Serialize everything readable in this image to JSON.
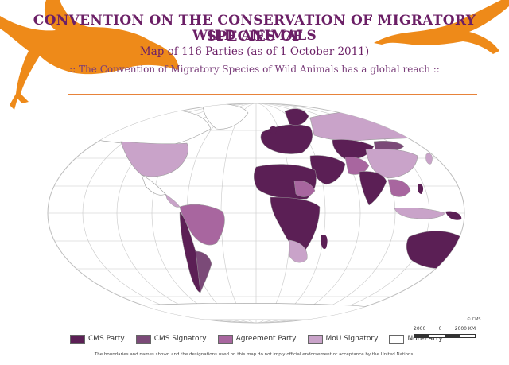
{
  "title_line_1": "CONVENTION ON THE CONSERVATION OF MIGRATORY SPECIES OF",
  "title_line_2": "WILD ANIMALS",
  "subtitle": "Map of 116 Parties (as of 1 October 2011)",
  "tagline": "::  The Convention of Migratory Species of Wild Animals has a global reach  ::",
  "copyright": "© CMS",
  "legend": [
    {
      "label": "CMS Party",
      "color": "#5b1f55"
    },
    {
      "label": "CMS Signatory",
      "color": "#7b4a78"
    },
    {
      "label": "Agreement Party",
      "color": "#a8669f"
    },
    {
      "label": "MoU Signatory",
      "color": "#c9a3c9"
    },
    {
      "label": "Non-Party",
      "color": "#ffffff"
    }
  ],
  "scale": {
    "left": "2000",
    "mid": "0",
    "right": "2000 KM"
  },
  "disclaimer": "The boundaries and names shown and the designations used on this map do not imply official endorsement or acceptance by the United Nations.",
  "colors": {
    "accent_orange": "#ee8a19",
    "title_purple": "#6b1f66",
    "graticule": "#c8c8c8"
  },
  "icons": [
    "migratory-bird-silhouette-left",
    "migratory-bird-silhouette-right"
  ]
}
